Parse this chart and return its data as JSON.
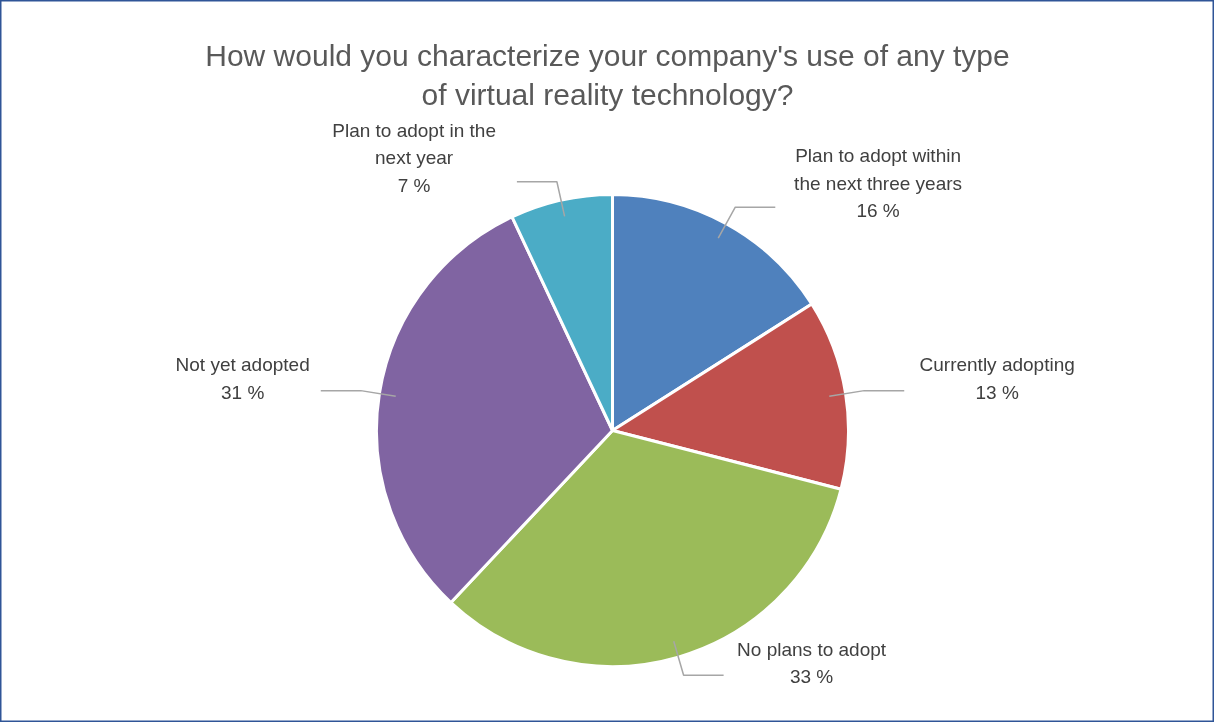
{
  "chart_data": {
    "type": "pie",
    "title": "How would you characterize your company's use of any type of virtual reality technology?",
    "categories": [
      "Plan to adopt within the next three years",
      "Currently adopting",
      "No plans to adopt",
      "Not yet adopted",
      "Plan to adopt in the next year"
    ],
    "values": [
      16,
      13,
      33,
      31,
      7
    ],
    "colors": [
      "#4f81bd",
      "#c0504d",
      "#9bbb59",
      "#8064a2",
      "#4bacc6"
    ],
    "value_labels": [
      "16 %",
      "13 %",
      "33 %",
      "31 %",
      "7 %"
    ]
  }
}
